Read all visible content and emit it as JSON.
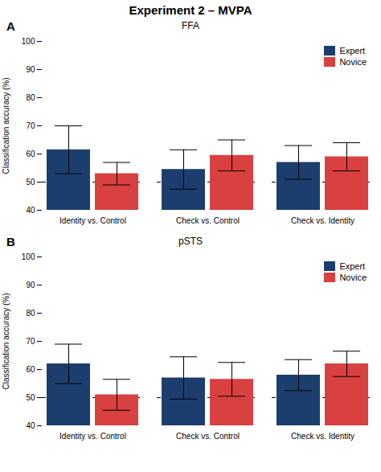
{
  "title": "Experiment 2 – MVPA",
  "chart_data": [
    {
      "type": "bar",
      "title": "FFA",
      "annotations": [
        "A"
      ],
      "categories": [
        "Identity vs. Control",
        "Check vs. Control",
        "Check vs. Identity"
      ],
      "series": [
        {
          "name": "Expert",
          "color": "#1C3E6E",
          "values": [
            61.5,
            54.5,
            57.0
          ],
          "errors": [
            8.5,
            7.0,
            6.0
          ]
        },
        {
          "name": "Novice",
          "color": "#D94040",
          "values": [
            53.0,
            59.5,
            59.0
          ],
          "errors": [
            4.0,
            5.5,
            5.0
          ]
        }
      ],
      "ylabel": "Classification accuracy (%)",
      "ylim": [
        40,
        100
      ],
      "yticks": [
        40,
        50,
        60,
        70,
        80,
        90,
        100
      ],
      "chance_line": 50,
      "grid": false,
      "legend": "upper right"
    },
    {
      "type": "bar",
      "title": "pSTS",
      "annotations": [
        "B"
      ],
      "categories": [
        "Identity vs. Control",
        "Check vs. Control",
        "Check vs. Identity"
      ],
      "series": [
        {
          "name": "Expert",
          "color": "#1C3E6E",
          "values": [
            62.0,
            57.0,
            58.0
          ],
          "errors": [
            7.0,
            7.5,
            5.5
          ]
        },
        {
          "name": "Novice",
          "color": "#D94040",
          "values": [
            51.0,
            56.5,
            62.0
          ],
          "errors": [
            5.5,
            6.0,
            4.5
          ]
        }
      ],
      "ylabel": "Classification accuracy (%)",
      "ylim": [
        40,
        100
      ],
      "yticks": [
        40,
        50,
        60,
        70,
        80,
        90,
        100
      ],
      "chance_line": 50,
      "grid": false,
      "legend": "upper right"
    }
  ]
}
